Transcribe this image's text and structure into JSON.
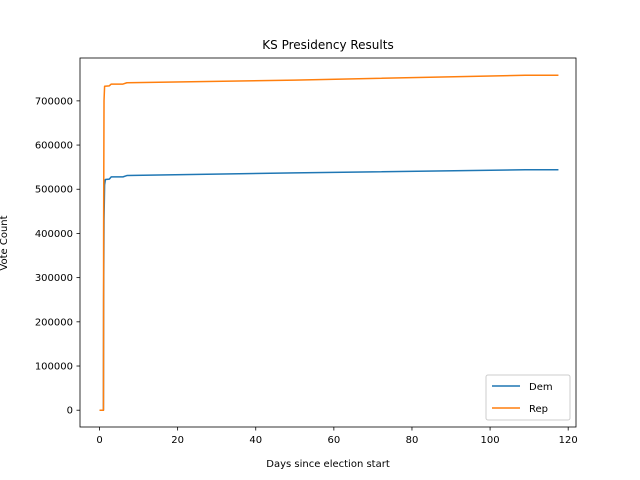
{
  "chart_data": {
    "type": "line",
    "title": "KS Presidency Results",
    "xlabel": "Days since election start",
    "ylabel": "Vote Count",
    "xlim": [
      -5,
      122
    ],
    "ylim": [
      -38000,
      797000
    ],
    "xticks": [
      0,
      20,
      40,
      60,
      80,
      100,
      120
    ],
    "yticks": [
      0,
      100000,
      200000,
      300000,
      400000,
      500000,
      600000,
      700000
    ],
    "grid": false,
    "legend_position": "lower-right",
    "series": [
      {
        "name": "Dem",
        "color": "#1f77b4",
        "points": [
          [
            0,
            0
          ],
          [
            1.0,
            0
          ],
          [
            1.05,
            250000
          ],
          [
            1.15,
            430000
          ],
          [
            1.3,
            510000
          ],
          [
            1.5,
            522000
          ],
          [
            2.5,
            523000
          ],
          [
            3.0,
            528000
          ],
          [
            6.0,
            528000
          ],
          [
            7.0,
            531000
          ],
          [
            50,
            537000
          ],
          [
            109,
            544000
          ],
          [
            117.5,
            544000
          ]
        ]
      },
      {
        "name": "Rep",
        "color": "#ff7f0e",
        "points": [
          [
            0,
            0
          ],
          [
            1.0,
            0
          ],
          [
            1.05,
            420000
          ],
          [
            1.15,
            700000
          ],
          [
            1.3,
            733000
          ],
          [
            2.5,
            734000
          ],
          [
            3.0,
            738000
          ],
          [
            6.0,
            738000
          ],
          [
            7.0,
            741000
          ],
          [
            50,
            747000
          ],
          [
            109,
            758000
          ],
          [
            117.5,
            758000
          ]
        ]
      }
    ]
  }
}
